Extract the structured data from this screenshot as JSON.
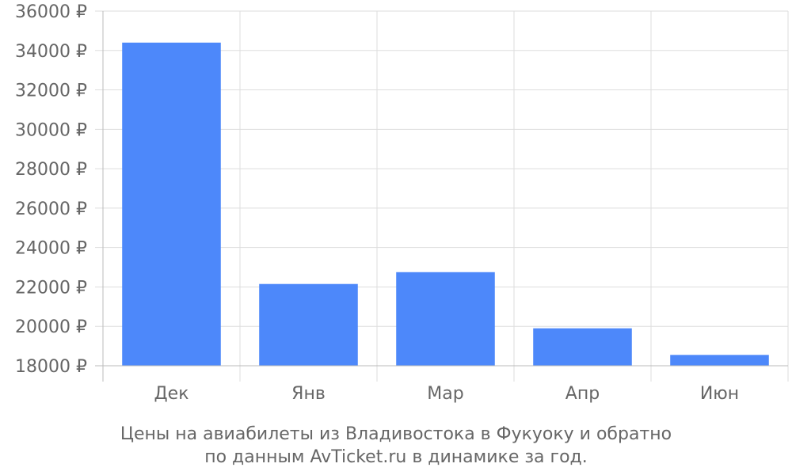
{
  "chart_data": {
    "type": "bar",
    "categories": [
      "Дек",
      "Янв",
      "Мар",
      "Апр",
      "Июн"
    ],
    "values": [
      34400,
      22150,
      22750,
      19900,
      18550
    ],
    "ylim": [
      18000,
      36000
    ],
    "y_ticks": [
      {
        "value": 18000,
        "label": "18000 ₽"
      },
      {
        "value": 20000,
        "label": "20000 ₽"
      },
      {
        "value": 22000,
        "label": "22000 ₽"
      },
      {
        "value": 24000,
        "label": "24000 ₽"
      },
      {
        "value": 26000,
        "label": "26000 ₽"
      },
      {
        "value": 28000,
        "label": "28000 ₽"
      },
      {
        "value": 30000,
        "label": "30000 ₽"
      },
      {
        "value": 32000,
        "label": "32000 ₽"
      },
      {
        "value": 34000,
        "label": "34000 ₽"
      },
      {
        "value": 36000,
        "label": "36000 ₽"
      }
    ],
    "grid": true,
    "bar_color": "#4d88fa",
    "caption_lines": [
      "Цены на авиабилеты из Владивостока в Фукуоку и обратно",
      "по данным AvTicket.ru в динамике за год."
    ]
  }
}
